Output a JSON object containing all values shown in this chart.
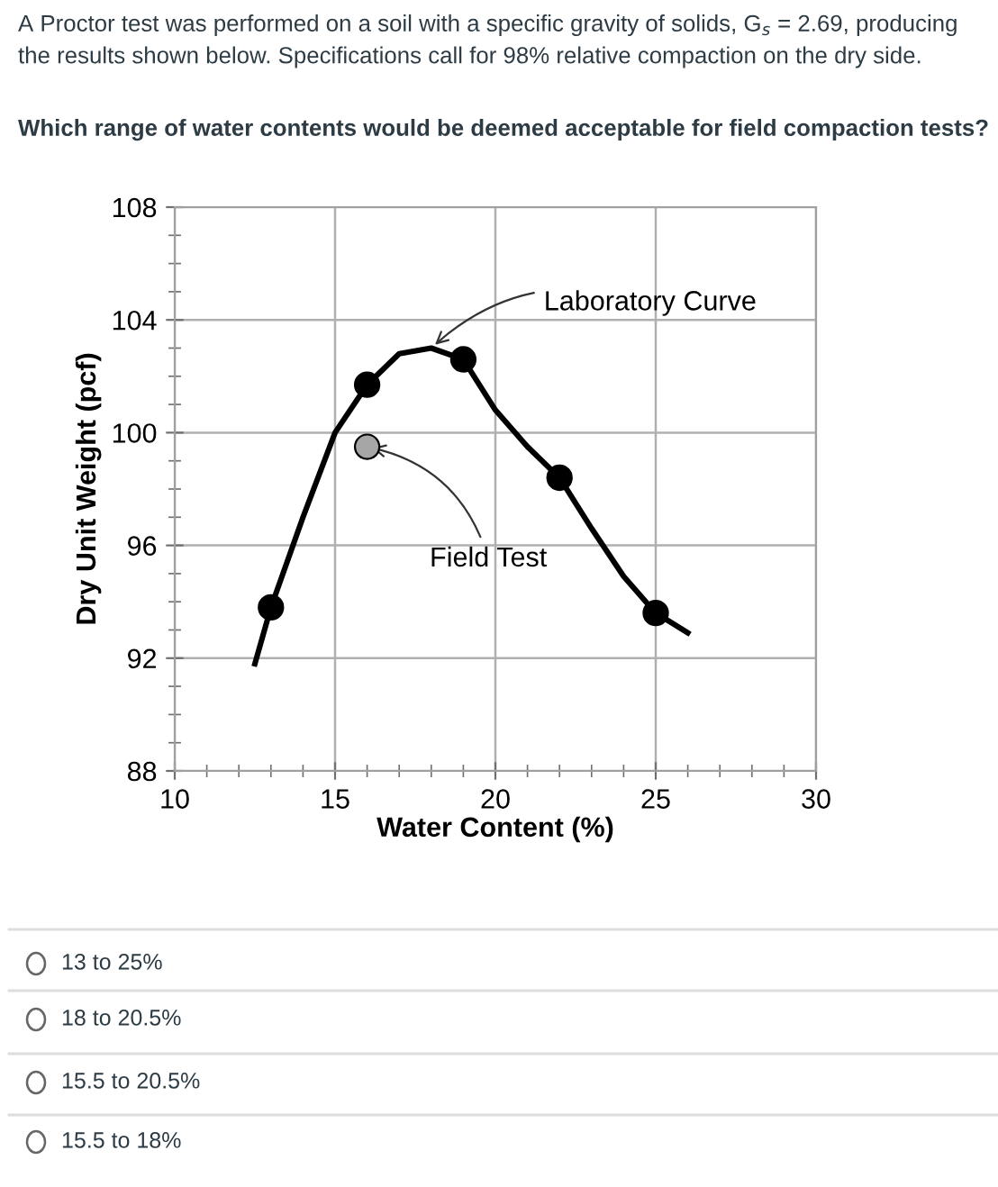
{
  "chart_data": {
    "type": "line",
    "title": "A Proctor test was performed on a soil with a specific gravity of solids, G$_{s}$ = 2.69, producing the results shown below. Specifications call for 98% relative compaction on the dry side.",
    "subtitle": "Which range of water contents would be deemed acceptable for field compaction tests?",
    "xlabel": "Water Content (%)",
    "ylabel": "Dry Unit Weight (pcf)",
    "series": [
      {
        "color": "#000000",
        "x": [
          12.5,
          13,
          14,
          15,
          16,
          17,
          18,
          19,
          20,
          21,
          22,
          23,
          24,
          25,
          26
        ],
        "values": [
          91.8,
          93.8,
          97.0,
          100.0,
          101.7,
          102.8,
          103.0,
          102.6,
          100.8,
          99.5,
          98.4,
          96.6,
          94.9,
          93.6,
          92.9
        ]
      },
      {
        "type": "scatter",
        "color": "#000000",
        "marker": "circle",
        "x": [
          13,
          16,
          19,
          22,
          25
        ],
        "values": [
          93.8,
          101.7,
          102.6,
          98.4,
          93.6
        ]
      },
      {
        "type": "scatter",
        "color": "#a6a6a6",
        "marker": "circle",
        "x": [
          16
        ],
        "values": [
          99.5
        ]
      }
    ],
    "xlim": [
      10,
      30
    ],
    "ylim": [
      88,
      108
    ],
    "xticks": [
      10,
      {
        "value": 11,
        "label": null
      },
      {
        "value": 12,
        "label": null
      },
      {
        "value": 13,
        "label": null
      },
      {
        "value": 14,
        "label": null
      },
      15,
      {
        "value": 16,
        "label": null
      },
      {
        "value": 17,
        "label": null
      },
      {
        "value": 18,
        "label": null
      },
      {
        "value": 19,
        "label": null
      },
      20,
      {
        "value": 21,
        "label": null
      },
      {
        "value": 22,
        "label": null
      },
      {
        "value": 23,
        "label": null
      },
      {
        "value": 24,
        "label": null
      },
      25,
      {
        "value": 26,
        "label": null
      },
      {
        "value": 27,
        "label": null
      },
      {
        "value": 28,
        "label": null
      },
      {
        "value": 29,
        "label": null
      },
      30
    ],
    "yticks": [
      88,
      {
        "value": 89,
        "label": null
      },
      {
        "value": 90,
        "label": null
      },
      {
        "value": 91,
        "label": null
      },
      92,
      {
        "value": 93,
        "label": null
      },
      {
        "value": 94,
        "label": null
      },
      {
        "value": 95,
        "label": null
      },
      96,
      {
        "value": 97,
        "label": null
      },
      {
        "value": 98,
        "label": null
      },
      {
        "value": 99,
        "label": null
      },
      100,
      {
        "value": 101,
        "label": null
      },
      {
        "value": 102,
        "label": null
      },
      {
        "value": 103,
        "label": null
      },
      104,
      {
        "value": 105,
        "label": null
      },
      {
        "value": 106,
        "label": null
      },
      {
        "value": 107,
        "label": null
      },
      108
    ],
    "grid": true,
    "annotations": [
      {
        "text": "Laboratory Curve",
        "x": 18,
        "y": 103
      },
      {
        "text": "Field Test",
        "x": 16,
        "y": 99.5
      },
      "13 to 25%",
      "18 to 20.5%",
      "15.5 to 20.5%",
      "15.5 to 18%"
    ]
  }
}
